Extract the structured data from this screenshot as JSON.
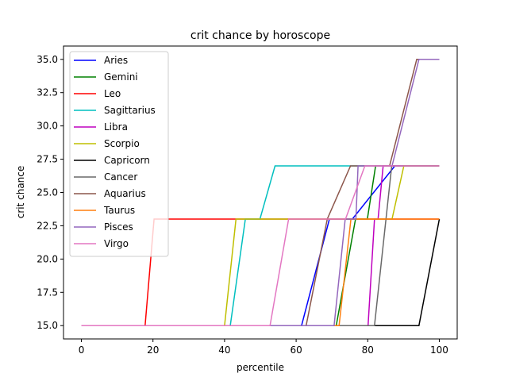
{
  "chart_data": {
    "type": "line",
    "title": "crit chance by horoscope",
    "xlabel": "percentile",
    "ylabel": "crit chance",
    "xlim": [
      -5,
      105
    ],
    "ylim": [
      14.0,
      36.0
    ],
    "xticks": [
      0,
      20,
      40,
      60,
      80,
      100
    ],
    "yticks": [
      15.0,
      17.5,
      20.0,
      22.5,
      25.0,
      27.5,
      30.0,
      32.5,
      35.0
    ],
    "xtick_labels": [
      "0",
      "20",
      "40",
      "60",
      "80",
      "100"
    ],
    "ytick_labels": [
      "15.0",
      "17.5",
      "20.0",
      "22.5",
      "25.0",
      "27.5",
      "30.0",
      "32.5",
      "35.0"
    ],
    "grid": false,
    "legend_position": "top-left",
    "series": [
      {
        "name": "Aries",
        "color": "#0000ff",
        "x": [
          0,
          61.5,
          69.3,
          75.7,
          87.6,
          100
        ],
        "y": [
          15,
          15,
          23,
          23,
          27,
          27
        ]
      },
      {
        "name": "Gemini",
        "color": "#008000",
        "x": [
          0,
          71.2,
          76.6,
          79.9,
          82.2,
          100
        ],
        "y": [
          15,
          15,
          23,
          23,
          27,
          27
        ]
      },
      {
        "name": "Leo",
        "color": "#ff0000",
        "x": [
          0,
          17.8,
          20.3,
          100
        ],
        "y": [
          15,
          15,
          23,
          23
        ]
      },
      {
        "name": "Sagittarius",
        "color": "#00bfbf",
        "x": [
          0,
          41.6,
          45.8,
          49.9,
          54.1,
          100
        ],
        "y": [
          15,
          15,
          23,
          23,
          27,
          27
        ]
      },
      {
        "name": "Libra",
        "color": "#bf00bf",
        "x": [
          0,
          80.1,
          81.9,
          82.9,
          84.3,
          100
        ],
        "y": [
          15,
          15,
          23,
          23,
          27,
          27
        ]
      },
      {
        "name": "Scorpio",
        "color": "#bfbf00",
        "x": [
          0,
          40.0,
          43.2,
          86.8,
          90.1,
          100
        ],
        "y": [
          15,
          15,
          23,
          23,
          27,
          27
        ]
      },
      {
        "name": "Capricorn",
        "color": "#000000",
        "x": [
          0,
          94.3,
          100
        ],
        "y": [
          15,
          15,
          23
        ]
      },
      {
        "name": "Cancer",
        "color": "#696969",
        "x": [
          0,
          81.9,
          86.7,
          100
        ],
        "y": [
          15,
          15,
          27,
          27
        ]
      },
      {
        "name": "Aquarius",
        "color": "#8c564b",
        "x": [
          0,
          62.8,
          68.7,
          75.2,
          81.5,
          86.1,
          93.7,
          100
        ],
        "y": [
          15,
          15,
          23,
          27,
          27,
          27,
          35,
          35
        ]
      },
      {
        "name": "Taurus",
        "color": "#ff7f0e",
        "x": [
          0,
          72.0,
          75.3,
          100
        ],
        "y": [
          15,
          15,
          23,
          23
        ]
      },
      {
        "name": "Pisces",
        "color": "#9467bd",
        "x": [
          0,
          70.6,
          73.7,
          76.7,
          77.3,
          86.8,
          94.3,
          100
        ],
        "y": [
          15,
          15,
          23,
          23,
          27,
          27,
          35,
          35
        ]
      },
      {
        "name": "Virgo",
        "color": "#e377c2",
        "x": [
          0,
          52.7,
          57.9,
          73.8,
          79.2,
          100
        ],
        "y": [
          15,
          15,
          23,
          23,
          27,
          27
        ]
      }
    ]
  }
}
